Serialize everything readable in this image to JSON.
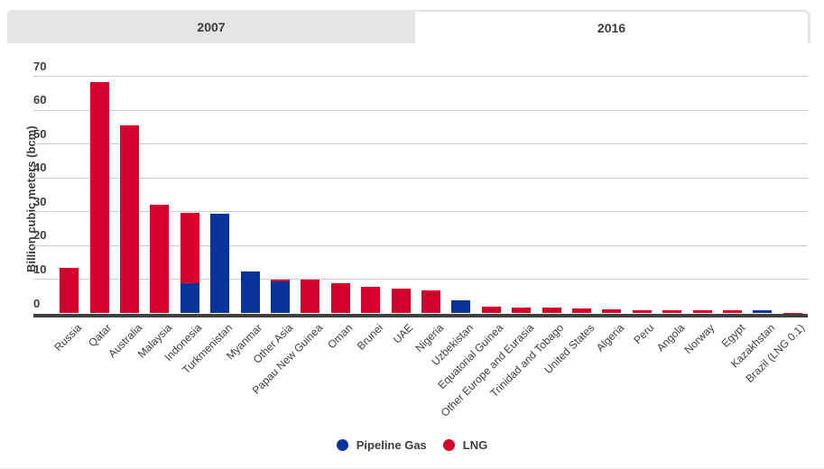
{
  "tabs": [
    {
      "label": "2007",
      "active": false
    },
    {
      "label": "2016",
      "active": true
    }
  ],
  "chart_data": {
    "type": "bar",
    "stacked": true,
    "ylabel": "Billion cubic meters (bcm)",
    "ylim": [
      0,
      70
    ],
    "yticks": [
      0,
      10,
      20,
      30,
      40,
      50,
      60,
      70
    ],
    "grid": true,
    "legend_position": "bottom",
    "categories": [
      "Russia",
      "Qatar",
      "Australia",
      "Malaysia",
      "Indonesia",
      "Turkmenistan",
      "Myanmar",
      "Other Asia",
      "Papau New Guinea",
      "Oman",
      "Brunei",
      "UAE",
      "Nigeria",
      "Uzbekistan",
      "Equatorial Guinea",
      "Other Europe and Eurasia",
      "Trinidad and Tobago",
      "United States",
      "Algeria",
      "Peru",
      "Angola",
      "Norway",
      "Egypt",
      "Kazakhstan",
      "Brazil (LNG 0.1)"
    ],
    "series": [
      {
        "name": "Pipeline Gas",
        "color": "#08339b",
        "values": [
          0,
          0,
          0,
          0,
          8.8,
          29.4,
          12.5,
          9.5,
          0,
          0,
          0,
          0,
          0,
          3.8,
          0,
          0,
          0,
          0,
          0,
          0,
          0,
          0,
          0,
          0.8,
          0
        ]
      },
      {
        "name": "LNG",
        "color": "#d4002b",
        "values": [
          13.4,
          68.4,
          55.5,
          32,
          20.8,
          0,
          0,
          0.6,
          10,
          9,
          7.9,
          7.3,
          6.8,
          0,
          2,
          1.8,
          1.8,
          1.4,
          1.1,
          0.9,
          0.9,
          0.9,
          1,
          0,
          0.1
        ]
      }
    ]
  },
  "colors": {
    "grid": "#cbcbcb",
    "axis": "#3f3f3f",
    "tab_inactive_bg": "#e5e5e5",
    "tab_active_bg": "#ffffff"
  }
}
